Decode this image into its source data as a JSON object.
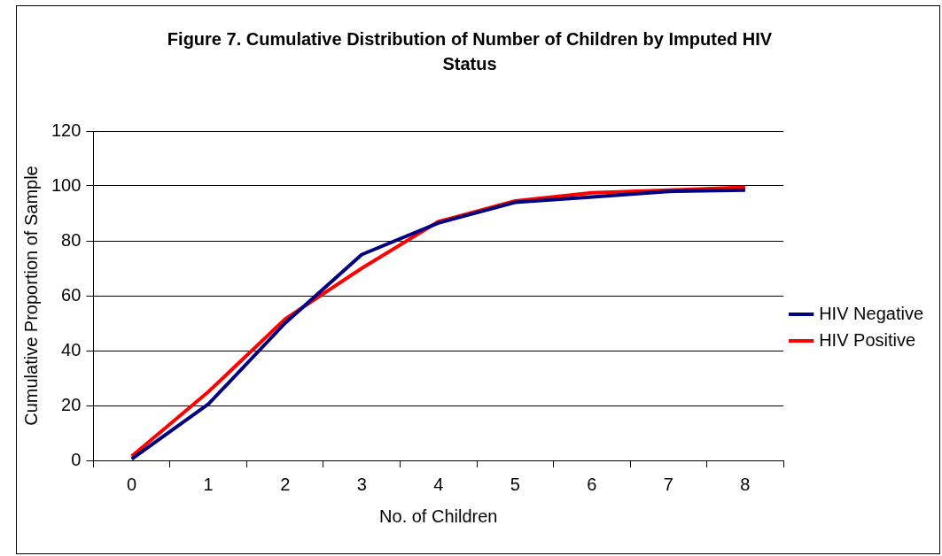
{
  "chart_data": {
    "type": "line",
    "title": "Figure 7. Cumulative Distribution of Number of Children by Imputed HIV Status",
    "xlabel": "No. of Children",
    "ylabel": "Cumulative Proportion of Sample",
    "categories": [
      "0",
      "1",
      "2",
      "3",
      "4",
      "5",
      "6",
      "7",
      "8"
    ],
    "series": [
      {
        "name": "HIV Negative",
        "color": "#000080",
        "values": [
          0.5,
          20.5,
          50,
          75,
          86.5,
          94,
          96,
          98,
          98.5
        ]
      },
      {
        "name": "HIV Positive",
        "color": "#ff0000",
        "values": [
          1.5,
          25,
          51.5,
          70,
          87,
          94.5,
          97.5,
          98.5,
          99.5
        ]
      }
    ],
    "ylim": [
      0,
      120
    ],
    "yticks": [
      0,
      20,
      40,
      60,
      80,
      100,
      120
    ],
    "grid": "y",
    "legend": "right",
    "marker": "none",
    "line_style": "solid"
  }
}
